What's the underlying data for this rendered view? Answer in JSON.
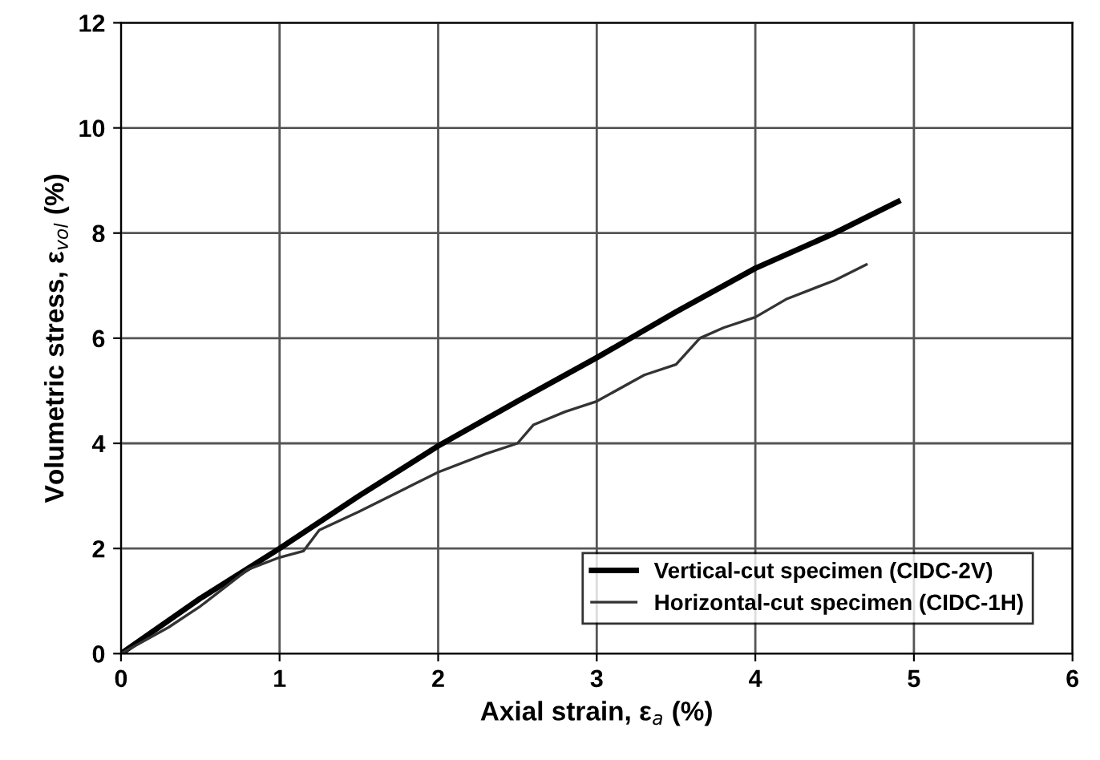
{
  "chart_data": {
    "type": "line",
    "xlabel": "Axial strain, ε$_{a}$ (%)",
    "ylabel": "Volumetric stress, ε$_{vol}$ (%)",
    "xlim": [
      0,
      6
    ],
    "xticks": [
      0,
      1,
      2,
      3,
      4,
      5,
      6
    ],
    "ylim": [
      0,
      12
    ],
    "yticks": [
      0,
      2,
      4,
      6,
      8,
      10,
      12
    ],
    "grid": true,
    "legend": "bottom right",
    "series": [
      {
        "name": "Vertical-cut specimen (CIDC-2V)",
        "color": "#000000",
        "x": [
          0,
          0.5,
          1,
          1.5,
          2,
          2.5,
          3,
          3.5,
          4,
          4.5,
          4.9
        ],
        "values": [
          0,
          1.05,
          2.0,
          3.0,
          3.95,
          4.8,
          5.63,
          6.5,
          7.33,
          8.0,
          8.6
        ]
      },
      {
        "name": "Horizontal-cut specimen (CIDC-1H)",
        "color": "#333333",
        "x": [
          0,
          0.3,
          0.5,
          0.8,
          1.0,
          1.15,
          1.25,
          1.5,
          1.8,
          2.0,
          2.3,
          2.5,
          2.6,
          2.8,
          3.0,
          3.3,
          3.5,
          3.65,
          3.8,
          4.0,
          4.2,
          4.5,
          4.7
        ],
        "values": [
          0,
          0.5,
          0.9,
          1.6,
          1.83,
          1.95,
          2.35,
          2.7,
          3.15,
          3.45,
          3.8,
          4.0,
          4.35,
          4.6,
          4.8,
          5.3,
          5.5,
          6.0,
          6.2,
          6.4,
          6.75,
          7.1,
          7.4
        ]
      }
    ]
  }
}
